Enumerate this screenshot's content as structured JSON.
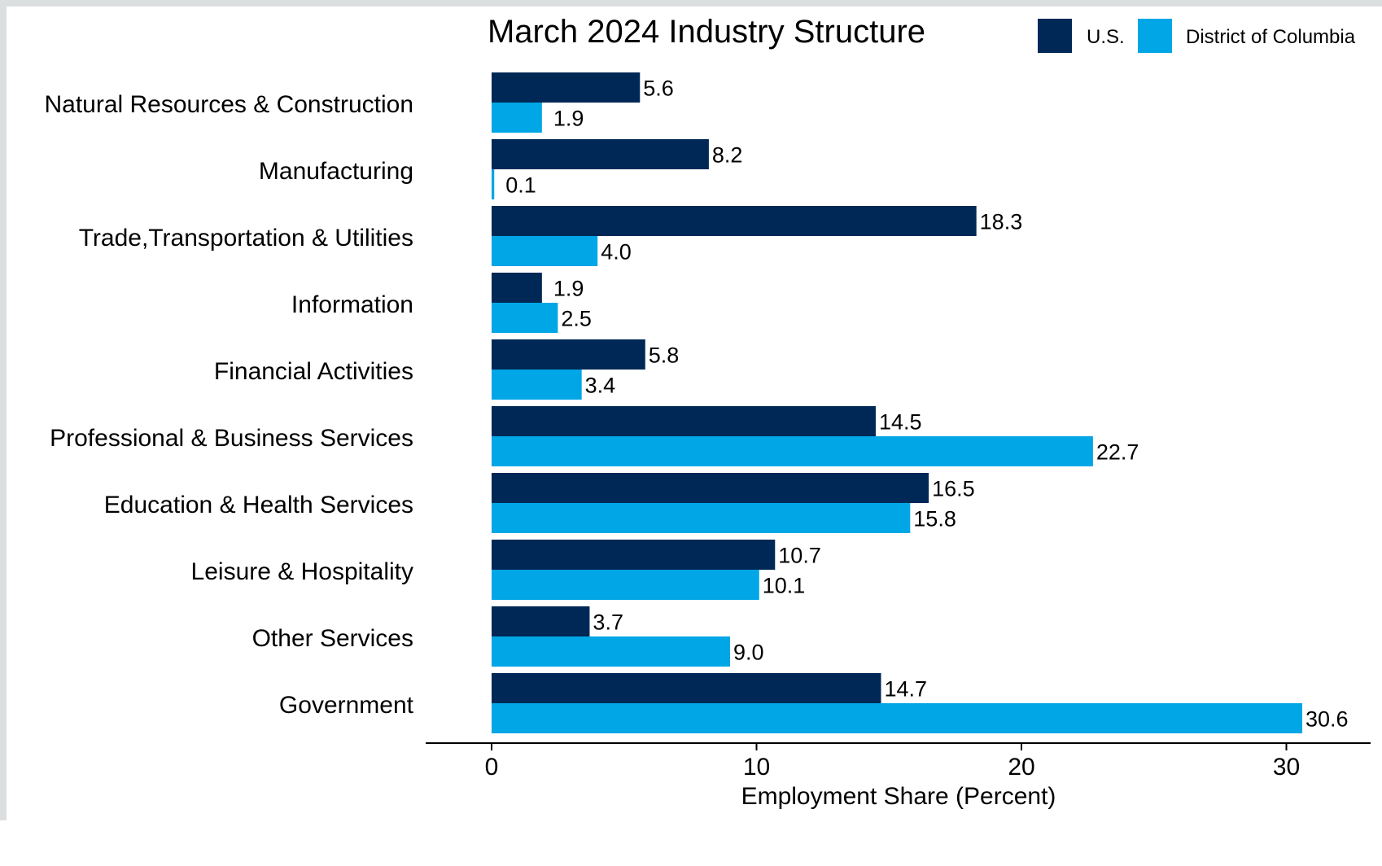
{
  "chart_data": {
    "type": "bar",
    "orientation": "horizontal",
    "title": "March 2024 Industry Structure",
    "xlabel": "Employment Share (Percent)",
    "ylabel": "",
    "xlim": [
      0,
      32
    ],
    "xticks": [
      0,
      10,
      20,
      30
    ],
    "grid": false,
    "legend_position": "top-right",
    "categories": [
      "Natural Resources & Construction",
      "Manufacturing",
      "Trade,Transportation & Utilities",
      "Information",
      "Financial Activities",
      "Professional & Business Services",
      "Education & Health Services",
      "Leisure & Hospitality",
      "Other Services",
      "Government"
    ],
    "series": [
      {
        "name": "U.S.",
        "color": "#002856",
        "values": [
          5.6,
          8.2,
          18.3,
          1.9,
          5.8,
          14.5,
          16.5,
          10.7,
          3.7,
          14.7
        ],
        "labels": [
          "5.6",
          "8.2",
          "18.3",
          "1.9",
          "5.8",
          "14.5",
          "16.5",
          "10.7",
          "3.7",
          "14.7"
        ]
      },
      {
        "name": "District of Columbia",
        "color": "#00a6e6",
        "values": [
          1.9,
          0.1,
          4.0,
          2.5,
          3.4,
          22.7,
          15.8,
          10.1,
          9.0,
          30.6
        ],
        "labels": [
          "1.9",
          "0.1",
          "4.0",
          "2.5",
          "3.4",
          "22.7",
          "15.8",
          "10.1",
          "9.0",
          "30.6"
        ]
      }
    ]
  }
}
